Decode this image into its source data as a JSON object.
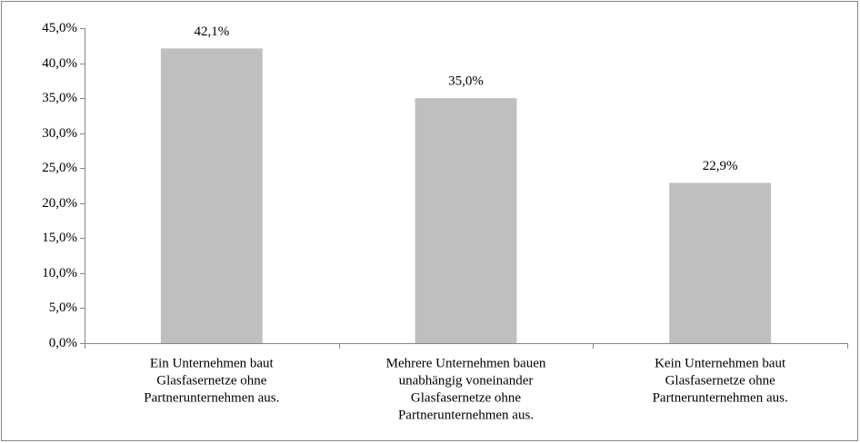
{
  "chart_data": {
    "type": "bar",
    "categories": [
      [
        "Ein Unternehmen baut",
        "Glasfasernetze ohne",
        "Partnerunternehmen aus."
      ],
      [
        "Mehrere Unternehmen bauen",
        "unabhängig voneinander",
        "Glasfasernetze ohne",
        "Partnerunternehmen aus."
      ],
      [
        "Kein Unternehmen baut",
        "Glasfasernetze ohne",
        "Partnerunternehmen aus."
      ]
    ],
    "values": [
      42.1,
      35.0,
      22.9
    ],
    "value_labels": [
      "42,1%",
      "35,0%",
      "22,9%"
    ],
    "color": "#bfbfbf",
    "ylim": [
      0,
      45
    ],
    "yticks": [
      {
        "value": 0,
        "label": "0,0%"
      },
      {
        "value": 5,
        "label": "5,0%"
      },
      {
        "value": 10,
        "label": "10,0%"
      },
      {
        "value": 15,
        "label": "15,0%"
      },
      {
        "value": 20,
        "label": "20,0%"
      },
      {
        "value": 25,
        "label": "25,0%"
      },
      {
        "value": 30,
        "label": "30,0%"
      },
      {
        "value": 35,
        "label": "35,0%"
      },
      {
        "value": 40,
        "label": "40,0%"
      },
      {
        "value": 45,
        "label": "45,0%"
      }
    ],
    "grid": false
  }
}
